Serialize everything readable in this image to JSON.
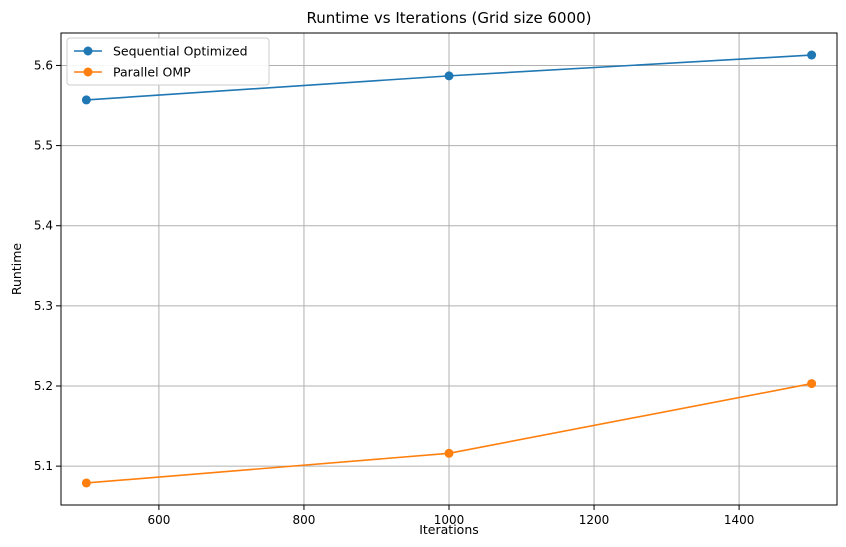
{
  "chart_data": {
    "type": "line",
    "title": "Runtime vs Iterations (Grid size 6000)",
    "xlabel": "Iterations",
    "ylabel": "Runtime",
    "x": [
      500,
      1000,
      1500
    ],
    "xlim": [
      465,
      1535
    ],
    "ylim": [
      5.0515,
      5.6405
    ],
    "xticks": [
      600,
      800,
      1000,
      1200,
      1400
    ],
    "yticks": [
      5.1,
      5.2,
      5.3,
      5.4,
      5.5,
      5.6
    ],
    "xtick_labels": [
      "600",
      "800",
      "1000",
      "1200",
      "1400"
    ],
    "ytick_labels": [
      "5.1",
      "5.2",
      "5.3",
      "5.4",
      "5.5",
      "5.6"
    ],
    "grid": true,
    "legend_position": "top-left",
    "series": [
      {
        "name": "Sequential Optimized",
        "color": "#1f77b4",
        "marker": "circle",
        "values": [
          5.557,
          5.587,
          5.613
        ]
      },
      {
        "name": "Parallel OMP",
        "color": "#ff7f0e",
        "marker": "circle",
        "values": [
          5.079,
          5.116,
          5.203
        ]
      }
    ]
  }
}
